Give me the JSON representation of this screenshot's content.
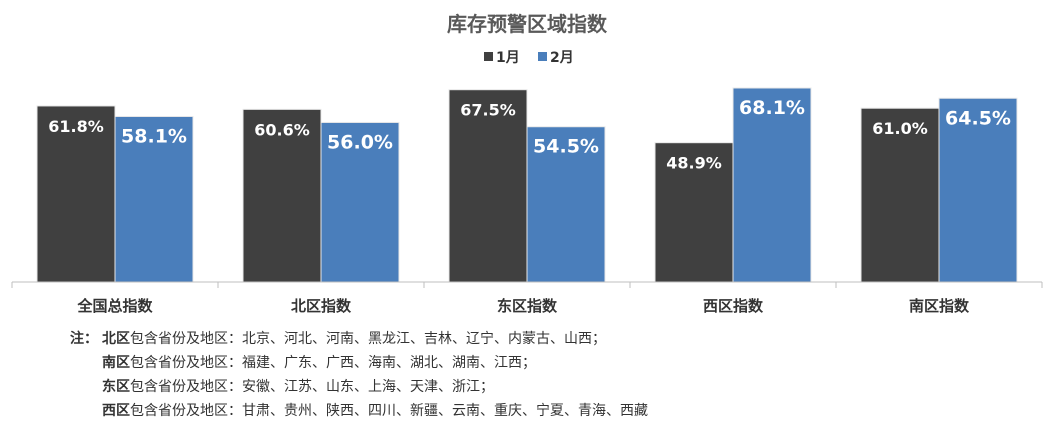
{
  "chart_data": {
    "type": "bar",
    "title": "库存预警区域指数",
    "categories": [
      "全国总指数",
      "北区指数",
      "东区指数",
      "西区指数",
      "南区指数"
    ],
    "series": [
      {
        "name": "1月",
        "values": [
          61.8,
          60.6,
          67.5,
          48.9,
          61.0
        ],
        "labels": [
          "61.8%",
          "60.6%",
          "67.5%",
          "48.9%",
          "61.0%"
        ]
      },
      {
        "name": "2月",
        "values": [
          58.1,
          56.0,
          54.5,
          68.1,
          64.5
        ],
        "labels": [
          "58.1%",
          "56.0%",
          "54.5%",
          "68.1%",
          "64.5%"
        ]
      }
    ],
    "ylim": [
      0,
      70
    ],
    "legend": "top-center",
    "grid": false
  },
  "colors": {
    "series_1": "#404040",
    "series_2": "#4a7ebb"
  },
  "notes": {
    "prefix": "注：",
    "items": [
      {
        "region": "北区",
        "text": "包含省份及地区：北京、河北、河南、黑龙江、吉林、辽宁、内蒙古、山西；"
      },
      {
        "region": "南区",
        "text": "包含省份及地区：福建、广东、广西、海南、湖北、湖南、江西；"
      },
      {
        "region": "东区",
        "text": "包含省份及地区：安徽、江苏、山东、上海、天津、浙江；"
      },
      {
        "region": "西区",
        "text": "包含省份及地区：甘肃、贵州、陕西、四川、新疆、云南、重庆、宁夏、青海、西藏"
      }
    ]
  }
}
